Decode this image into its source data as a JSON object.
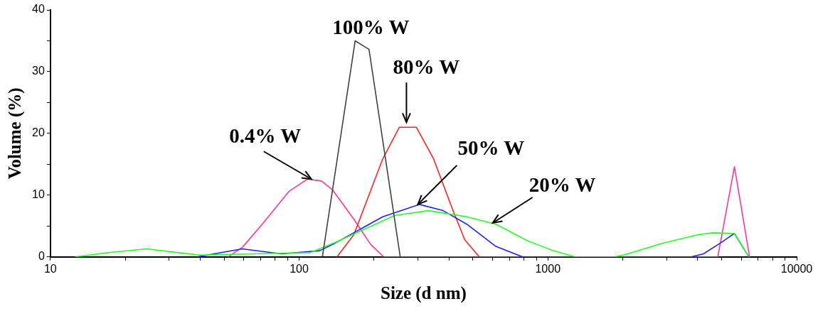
{
  "chart_data": {
    "type": "line",
    "xlabel": "Size (d nm)",
    "ylabel": "Volume (%)",
    "log": "x",
    "grid": false,
    "legend": false,
    "marker": "none",
    "line_style": "solid",
    "xlim": [
      10,
      10000
    ],
    "ylim": [
      0,
      40
    ],
    "xticks": [
      10,
      {
        "value": 20,
        "label": null
      },
      {
        "value": 30,
        "label": null
      },
      {
        "value": 40,
        "label": null
      },
      {
        "value": 50,
        "label": null
      },
      {
        "value": 60,
        "label": null
      },
      {
        "value": 70,
        "label": null
      },
      {
        "value": 80,
        "label": null
      },
      {
        "value": 90,
        "label": null
      },
      100,
      {
        "value": 200,
        "label": null
      },
      {
        "value": 300,
        "label": null
      },
      {
        "value": 400,
        "label": null
      },
      {
        "value": 500,
        "label": null
      },
      {
        "value": 600,
        "label": null
      },
      {
        "value": 700,
        "label": null
      },
      {
        "value": 800,
        "label": null
      },
      {
        "value": 900,
        "label": null
      },
      1000,
      {
        "value": 2000,
        "label": null
      },
      {
        "value": 3000,
        "label": null
      },
      {
        "value": 4000,
        "label": null
      },
      {
        "value": 5000,
        "label": null
      },
      {
        "value": 6000,
        "label": null
      },
      {
        "value": 7000,
        "label": null
      },
      {
        "value": 8000,
        "label": null
      },
      {
        "value": 9000,
        "label": null
      },
      10000
    ],
    "yticks": [
      0,
      {
        "value": 5,
        "label": null
      },
      10,
      {
        "value": 15,
        "label": null
      },
      20,
      {
        "value": 25,
        "label": null
      },
      30,
      {
        "value": 35,
        "label": null
      },
      40
    ],
    "series": [
      {
        "color": "#404040",
        "x": [
          124,
          168,
          191,
          255
        ],
        "values": [
          0,
          35,
          33.6,
          0
        ]
      },
      {
        "color": "#20ff20",
        "x": [
          12.6,
          17.1,
          24.4,
          39.7,
          111,
          139,
          242,
          331,
          472,
          618,
          830,
          1035,
          1288,
          1862,
          2060,
          2880,
          4030,
          4600,
          5620,
          6430
        ],
        "values": [
          0,
          0.7,
          1.3,
          0.3,
          0.7,
          2.3,
          6.7,
          7.5,
          6.5,
          5.3,
          2.6,
          1.1,
          0,
          0,
          0.4,
          2.2,
          3.6,
          3.9,
          3.8,
          0
        ]
      },
      {
        "color": "#2020ff",
        "x": [
          38.9,
          59,
          85,
          121,
          139,
          217,
          304,
          379,
          472,
          618,
          791,
          3767,
          4220,
          4920,
          5620,
          6430
        ],
        "values": [
          0,
          1.3,
          0.5,
          1,
          2.2,
          6.5,
          8.5,
          7.5,
          5.3,
          1.7,
          0,
          0,
          0.5,
          2.2,
          3.8,
          0
        ]
      },
      {
        "color": "#ff2020",
        "x": [
          142,
          166,
          217,
          253,
          296,
          347,
          413,
          463,
          530
        ],
        "values": [
          0,
          3.6,
          15.9,
          21,
          21,
          15.9,
          7.8,
          2.8,
          0
        ]
      },
      {
        "color": "#ff3399",
        "x": [
          51.9,
          59.3,
          71.1,
          91,
          108,
          123,
          136,
          166,
          194,
          219,
          4820,
          5623,
          6470
        ],
        "values": [
          0,
          1.6,
          5.3,
          10.6,
          12.6,
          12.3,
          10.9,
          6.1,
          2,
          0,
          0,
          14.6,
          0
        ]
      }
    ],
    "annotations": [
      {
        "text": "100% W",
        "x": 168,
        "y": 35
      },
      {
        "text": "80% W",
        "x": 270,
        "y": 21
      },
      {
        "text": "0.4% W",
        "x": 112,
        "y": 12.6
      },
      {
        "text": "50% W",
        "x": 300,
        "y": 8.5
      },
      {
        "text": "20% W",
        "x": 600,
        "y": 5.5
      }
    ]
  }
}
